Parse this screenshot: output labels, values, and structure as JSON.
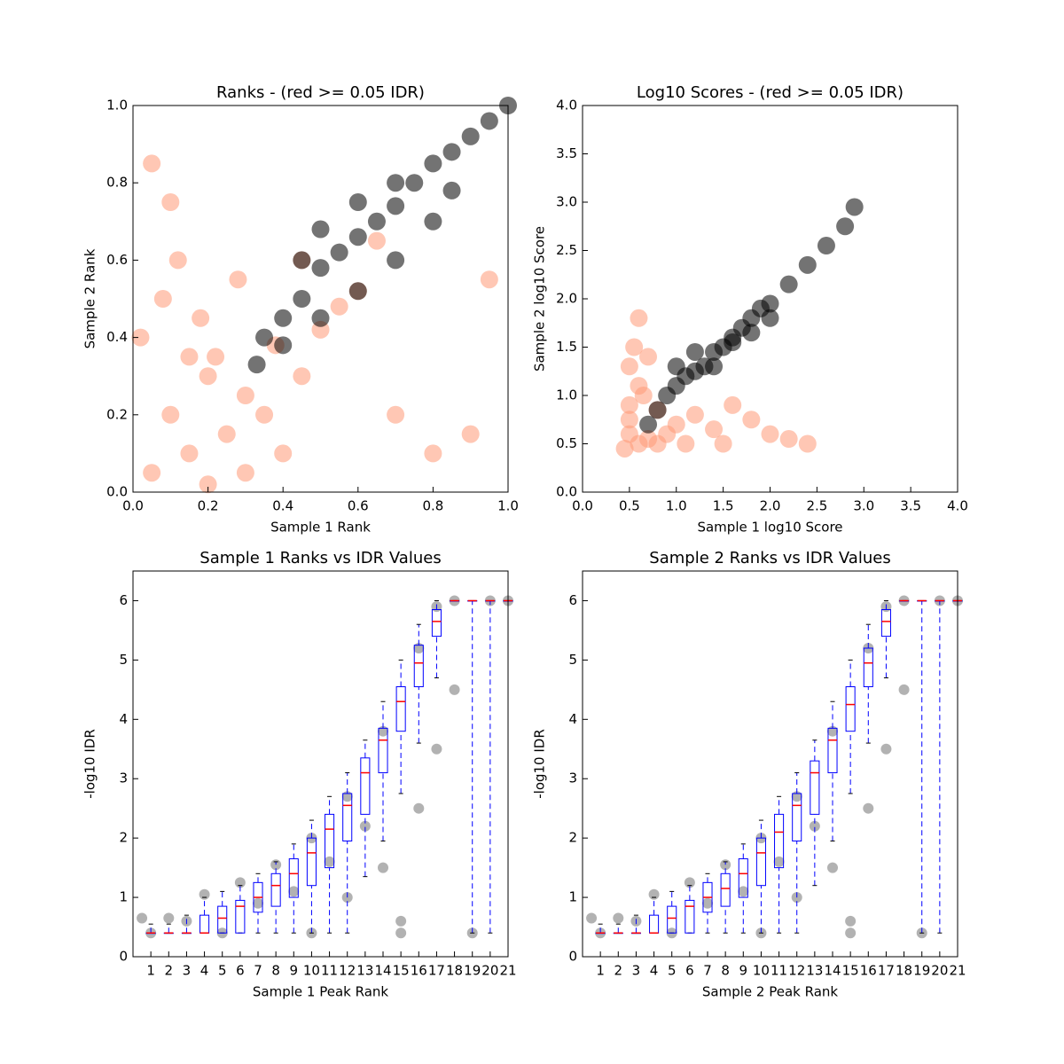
{
  "chart_data": [
    {
      "type": "scatter",
      "title": "Ranks - (red >= 0.05 IDR)",
      "x_label": "Sample 1 Rank",
      "y_label": "Sample 2 Rank",
      "xlim": [
        0,
        1
      ],
      "ylim": [
        0,
        1
      ],
      "xticks": [
        {
          "value": 0,
          "label": "0.0"
        },
        {
          "value": 0.2,
          "label": "0.2"
        },
        {
          "value": 0.4,
          "label": "0.4"
        },
        {
          "value": 0.6,
          "label": "0.6"
        },
        {
          "value": 0.8,
          "label": "0.8"
        },
        {
          "value": 1,
          "label": "1.0"
        }
      ],
      "yticks": [
        {
          "value": 0,
          "label": "0.0"
        },
        {
          "value": 0.2,
          "label": "0.2"
        },
        {
          "value": 0.4,
          "label": "0.4"
        },
        {
          "value": 0.6,
          "label": "0.6"
        },
        {
          "value": 0.8,
          "label": "0.8"
        },
        {
          "value": 1,
          "label": "1.0"
        }
      ],
      "series": [
        {
          "color": "#ff9977",
          "x": [
            0.05,
            0.1,
            0.15,
            0.2,
            0.25,
            0.3,
            0.02,
            0.08,
            0.12,
            0.18,
            0.22,
            0.28,
            0.35,
            0.4,
            0.45,
            0.5,
            0.55,
            0.6,
            0.7,
            0.8,
            0.9,
            0.05,
            0.1,
            0.3,
            0.2,
            0.15,
            0.38,
            0.45,
            0.65,
            0.95
          ],
          "values": [
            0.05,
            0.2,
            0.1,
            0.3,
            0.15,
            0.25,
            0.4,
            0.5,
            0.6,
            0.45,
            0.35,
            0.55,
            0.2,
            0.1,
            0.3,
            0.42,
            0.48,
            0.52,
            0.2,
            0.1,
            0.15,
            0.85,
            0.75,
            0.05,
            0.02,
            0.35,
            0.38,
            0.6,
            0.65,
            0.55
          ]
        },
        {
          "color": "#000000",
          "x": [
            0.33,
            0.35,
            0.4,
            0.45,
            0.5,
            0.55,
            0.6,
            0.65,
            0.7,
            0.75,
            0.8,
            0.85,
            0.9,
            0.95,
            1.0,
            0.4,
            0.5,
            0.6,
            0.7,
            0.8,
            0.5,
            0.6,
            0.7,
            0.85,
            0.45
          ],
          "values": [
            0.33,
            0.4,
            0.45,
            0.5,
            0.58,
            0.62,
            0.66,
            0.7,
            0.74,
            0.8,
            0.85,
            0.88,
            0.92,
            0.96,
            1.0,
            0.38,
            0.45,
            0.52,
            0.6,
            0.7,
            0.68,
            0.75,
            0.8,
            0.78,
            0.6
          ]
        }
      ]
    },
    {
      "type": "scatter",
      "title": "Log10 Scores - (red >= 0.05 IDR)",
      "x_label": "Sample 1 log10 Score",
      "y_label": "Sample 2 log10 Score",
      "xlim": [
        0,
        4
      ],
      "ylim": [
        0,
        4
      ],
      "xticks": [
        {
          "value": 0,
          "label": "0.0"
        },
        0.5,
        {
          "value": 1,
          "label": "1.0"
        },
        1.5,
        {
          "value": 2,
          "label": "2.0"
        },
        2.5,
        {
          "value": 3,
          "label": "3.0"
        },
        3.5,
        {
          "value": 4,
          "label": "4.0"
        }
      ],
      "yticks": [
        {
          "value": 0,
          "label": "0.0"
        },
        0.5,
        {
          "value": 1,
          "label": "1.0"
        },
        1.5,
        {
          "value": 2,
          "label": "2.0"
        },
        2.5,
        {
          "value": 3,
          "label": "3.0"
        },
        3.5,
        {
          "value": 4,
          "label": "4.0"
        }
      ],
      "series": [
        {
          "color": "#ff9977",
          "x": [
            0.45,
            0.5,
            0.6,
            0.7,
            0.8,
            0.5,
            0.6,
            0.9,
            1.0,
            1.2,
            1.4,
            1.6,
            1.8,
            2.0,
            2.2,
            2.4,
            0.5,
            0.55,
            0.6,
            0.7,
            0.65,
            1.1,
            1.5,
            0.5,
            0.8
          ],
          "values": [
            0.45,
            0.6,
            0.5,
            0.55,
            0.5,
            0.9,
            1.1,
            0.6,
            0.7,
            0.8,
            0.65,
            0.9,
            0.75,
            0.6,
            0.55,
            0.5,
            1.3,
            1.5,
            1.8,
            1.4,
            1.0,
            0.5,
            0.5,
            0.75,
            0.85
          ]
        },
        {
          "color": "#000000",
          "x": [
            0.7,
            0.8,
            0.9,
            1.0,
            1.1,
            1.2,
            1.3,
            1.4,
            1.5,
            1.6,
            1.7,
            1.8,
            1.9,
            2.0,
            2.2,
            2.4,
            2.6,
            2.8,
            2.9,
            1.0,
            1.2,
            1.4,
            1.6,
            1.8,
            2.0
          ],
          "values": [
            0.7,
            0.85,
            1.0,
            1.1,
            1.2,
            1.25,
            1.3,
            1.45,
            1.5,
            1.6,
            1.7,
            1.8,
            1.9,
            1.95,
            2.15,
            2.35,
            2.55,
            2.75,
            2.95,
            1.3,
            1.45,
            1.3,
            1.55,
            1.65,
            1.8
          ]
        }
      ]
    },
    {
      "type": "box",
      "title": "Sample 1 Ranks vs IDR Values",
      "x_label": "Sample 1 Peak Rank",
      "y_label": "-log10 IDR",
      "xlim": [
        0,
        21
      ],
      "ylim": [
        0,
        6.5
      ],
      "yticks": [
        0,
        1,
        2,
        3,
        4,
        5,
        6
      ],
      "categories": [
        "1",
        "2",
        "3",
        "4",
        "5",
        "6",
        "7",
        "8",
        "9",
        "10",
        "11",
        "12",
        "13",
        "14",
        "15",
        "16",
        "17",
        "18",
        "19",
        "20",
        "21"
      ],
      "whislo": [
        0.4,
        0.4,
        0.4,
        0.4,
        0.4,
        0.4,
        0.4,
        0.4,
        0.4,
        0.4,
        0.4,
        0.4,
        1.35,
        1.95,
        2.75,
        3.6,
        4.7,
        6,
        0.4,
        0.4,
        6
      ],
      "q1": [
        0.4,
        0.4,
        0.4,
        0.4,
        0.4,
        0.4,
        0.75,
        0.85,
        1.0,
        1.2,
        1.5,
        1.95,
        2.4,
        3.1,
        3.8,
        4.55,
        5.4,
        6,
        6,
        6,
        6
      ],
      "med": [
        0.4,
        0.4,
        0.4,
        0.4,
        0.65,
        0.85,
        1.0,
        1.2,
        1.4,
        1.75,
        2.15,
        2.55,
        3.1,
        3.65,
        4.3,
        4.95,
        5.65,
        6,
        6,
        6,
        6
      ],
      "q3": [
        0.4,
        0.4,
        0.4,
        0.7,
        0.85,
        0.95,
        1.25,
        1.4,
        1.65,
        2.0,
        2.4,
        2.75,
        3.35,
        3.85,
        4.55,
        5.25,
        5.85,
        6,
        6,
        6,
        6
      ],
      "whishi": [
        0.55,
        0.55,
        0.7,
        1.0,
        1.1,
        1.2,
        1.4,
        1.6,
        1.9,
        2.3,
        2.7,
        3.1,
        3.65,
        4.3,
        5.0,
        5.6,
        6,
        6,
        6,
        6,
        6
      ],
      "points": {
        "color": "#000000",
        "x": [
          0.5,
          2,
          4,
          6,
          8,
          10,
          12,
          14,
          16,
          17,
          18,
          20,
          21,
          1,
          5,
          10,
          15,
          19,
          12,
          14,
          16,
          17,
          18,
          15,
          3,
          7,
          9,
          11,
          13
        ],
        "values": [
          0.65,
          0.65,
          1.05,
          1.25,
          1.55,
          2.0,
          2.7,
          3.8,
          5.2,
          5.9,
          6,
          6,
          6,
          0.4,
          0.4,
          0.4,
          0.4,
          0.4,
          1.0,
          1.5,
          2.5,
          3.5,
          4.5,
          0.6,
          0.6,
          0.9,
          1.1,
          1.6,
          2.2
        ]
      }
    },
    {
      "type": "box",
      "title": "Sample 2 Ranks vs IDR Values",
      "x_label": "Sample 2 Peak Rank",
      "y_label": "-log10 IDR",
      "xlim": [
        0,
        21
      ],
      "ylim": [
        0,
        6.5
      ],
      "yticks": [
        0,
        1,
        2,
        3,
        4,
        5,
        6
      ],
      "categories": [
        "1",
        "2",
        "3",
        "4",
        "5",
        "6",
        "7",
        "8",
        "9",
        "10",
        "11",
        "12",
        "13",
        "14",
        "15",
        "16",
        "17",
        "18",
        "19",
        "20",
        "21"
      ],
      "whislo": [
        0.4,
        0.4,
        0.4,
        0.4,
        0.4,
        0.4,
        0.4,
        0.4,
        0.4,
        0.4,
        0.4,
        0.4,
        1.2,
        1.95,
        2.75,
        3.6,
        4.7,
        6,
        0.4,
        0.4,
        6
      ],
      "q1": [
        0.4,
        0.4,
        0.4,
        0.4,
        0.4,
        0.4,
        0.75,
        0.85,
        1.0,
        1.2,
        1.5,
        1.95,
        2.4,
        3.1,
        3.8,
        4.55,
        5.4,
        6,
        6,
        6,
        6
      ],
      "med": [
        0.4,
        0.4,
        0.4,
        0.4,
        0.65,
        0.85,
        1.0,
        1.15,
        1.4,
        1.75,
        2.1,
        2.55,
        3.1,
        3.65,
        4.25,
        4.95,
        5.65,
        6,
        6,
        6,
        6
      ],
      "q3": [
        0.4,
        0.4,
        0.4,
        0.7,
        0.85,
        0.95,
        1.25,
        1.4,
        1.65,
        2.0,
        2.4,
        2.75,
        3.3,
        3.85,
        4.55,
        5.2,
        5.85,
        6,
        6,
        6,
        6
      ],
      "whishi": [
        0.55,
        0.55,
        0.7,
        1.0,
        1.1,
        1.2,
        1.4,
        1.6,
        1.9,
        2.3,
        2.7,
        3.1,
        3.65,
        4.3,
        5.0,
        5.6,
        6,
        6,
        6,
        6,
        6
      ],
      "points": {
        "color": "#000000",
        "x": [
          0.5,
          2,
          4,
          6,
          8,
          10,
          12,
          14,
          16,
          17,
          18,
          20,
          21,
          1,
          5,
          10,
          15,
          19,
          12,
          14,
          16,
          17,
          18,
          15,
          3,
          7,
          9,
          11,
          13
        ],
        "values": [
          0.65,
          0.65,
          1.05,
          1.25,
          1.55,
          2.0,
          2.7,
          3.8,
          5.2,
          5.9,
          6,
          6,
          6,
          0.4,
          0.4,
          0.4,
          0.4,
          0.4,
          1.0,
          1.5,
          2.5,
          3.5,
          4.5,
          0.6,
          0.6,
          0.9,
          1.1,
          1.6,
          2.2
        ]
      }
    }
  ]
}
